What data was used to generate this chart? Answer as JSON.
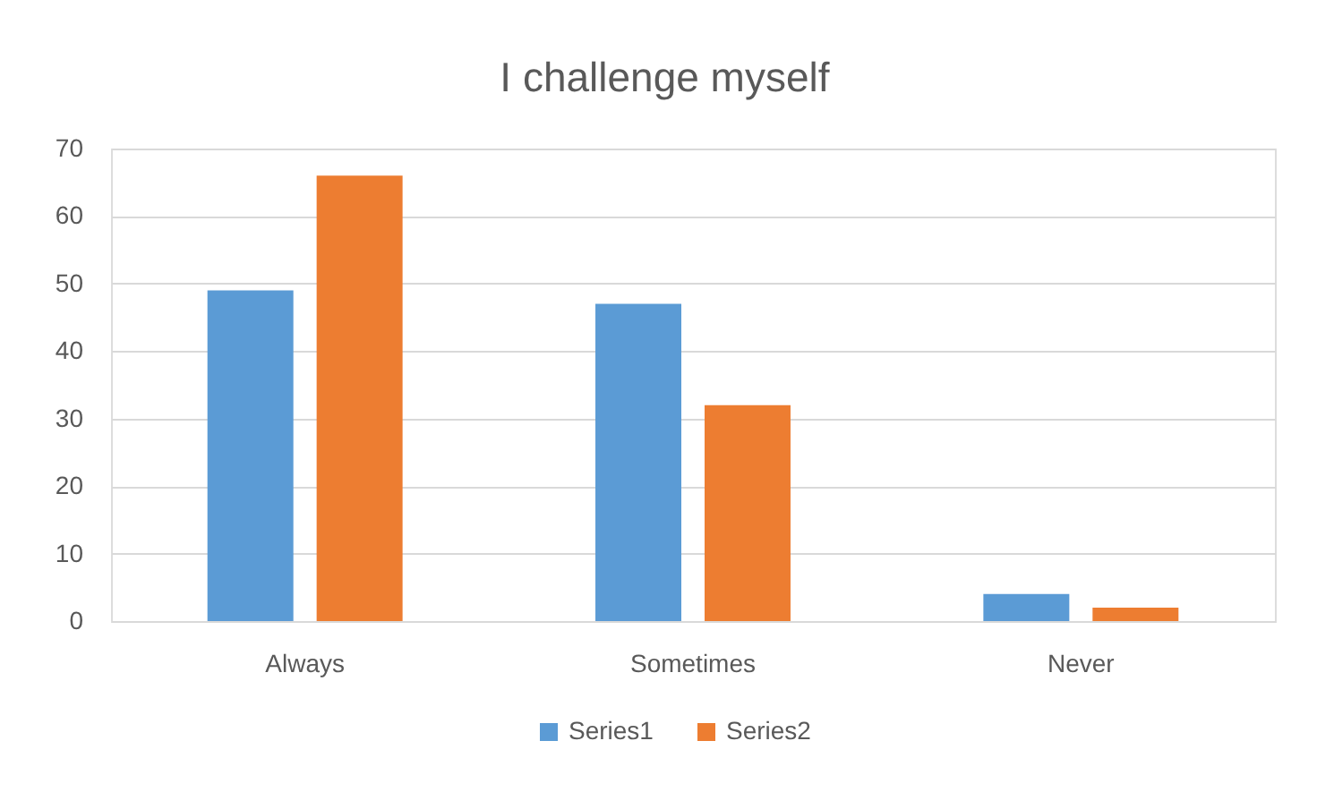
{
  "chart_data": {
    "type": "bar",
    "title": "I challenge myself",
    "categories": [
      "Always",
      "Sometimes",
      "Never"
    ],
    "series": [
      {
        "name": "Series1",
        "color": "#5b9bd5",
        "values": [
          49,
          47,
          4
        ]
      },
      {
        "name": "Series2",
        "color": "#ed7d31",
        "values": [
          66,
          32,
          2
        ]
      }
    ],
    "ylim": [
      0,
      70
    ],
    "yticks": [
      0,
      10,
      20,
      30,
      40,
      50,
      60,
      70
    ],
    "grid": "y",
    "legend": "bottom"
  }
}
